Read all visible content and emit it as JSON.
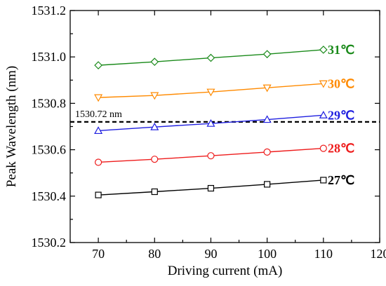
{
  "chart_data": {
    "type": "line",
    "xlabel": "Driving current (mA)",
    "ylabel": "Peak Wavelength (nm)",
    "xlim": [
      65,
      120
    ],
    "ylim": [
      1530.2,
      1531.2
    ],
    "xticks": [
      70,
      80,
      90,
      100,
      110,
      120
    ],
    "yticks": [
      "1530.2",
      "1530.4",
      "1530.6",
      "1530.8",
      "1531.0",
      "1531.2"
    ],
    "x": [
      70,
      80,
      90,
      100,
      110
    ],
    "grid": false,
    "series": [
      {
        "name": "27℃",
        "color": "#000000",
        "marker": "square",
        "values": [
          1530.405,
          1530.419,
          1530.434,
          1530.451,
          1530.469
        ]
      },
      {
        "name": "28℃",
        "color": "#ee1c1c",
        "marker": "circle",
        "values": [
          1530.546,
          1530.559,
          1530.574,
          1530.59,
          1530.606
        ]
      },
      {
        "name": "29℃",
        "color": "#1f1fe0",
        "marker": "triangle-up",
        "values": [
          1530.682,
          1530.698,
          1530.713,
          1530.73,
          1530.749
        ]
      },
      {
        "name": "30℃",
        "color": "#ff8a00",
        "marker": "triangle-down",
        "values": [
          1530.825,
          1530.834,
          1530.849,
          1530.867,
          1530.885
        ]
      },
      {
        "name": "31℃",
        "color": "#1a8a1a",
        "marker": "diamond",
        "values": [
          1530.964,
          1530.979,
          1530.996,
          1531.012,
          1531.031
        ]
      }
    ],
    "reference_line": {
      "y": 1530.72,
      "label": "1530.72 nm",
      "style": "dashed",
      "color": "#000000"
    }
  }
}
